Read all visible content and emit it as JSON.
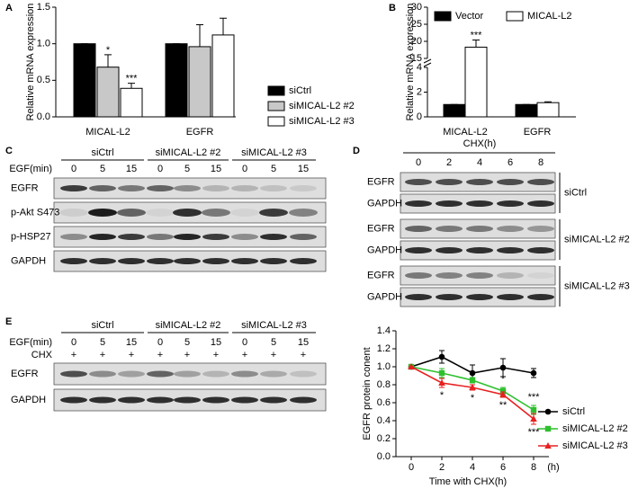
{
  "chart_data": [
    {
      "type": "bar",
      "panel": "A",
      "ylabel": "Relative mRNA expression",
      "categories": [
        "MICAL-L2",
        "EGFR"
      ],
      "series": [
        {
          "name": "siCtrl",
          "color": "#000000",
          "values": [
            1,
            1
          ],
          "errors": [
            0,
            0
          ]
        },
        {
          "name": "siMICAL-L2 #2",
          "color": "#c8c8c8",
          "values": [
            0.68,
            0.96
          ],
          "errors": [
            0.17,
            0.3
          ]
        },
        {
          "name": "siMICAL-L2 #3",
          "color": "#ffffff",
          "values": [
            0.39,
            1.12
          ],
          "errors": [
            0.07,
            0.23
          ]
        }
      ],
      "annotations": [
        {
          "text": "*"
        },
        {
          "text": "***"
        }
      ],
      "ylim": [
        0,
        1.5
      ],
      "yticks": [
        {
          "value": 0,
          "label": "0.0"
        },
        0.5,
        {
          "value": 1,
          "label": "1.0"
        },
        1.5
      ],
      "legend": "right"
    },
    {
      "type": "bar",
      "panel": "B",
      "ylabel": "Relative mRNA expression",
      "categories": [
        "MICAL-L2",
        "EGFR"
      ],
      "series": [
        {
          "name": "Vector",
          "color": "#000000",
          "values": [
            1,
            1
          ],
          "errors": [
            0,
            0
          ]
        },
        {
          "name": "MICAL-L2",
          "color": "#ffffff",
          "values": [
            18.3,
            1.15
          ],
          "errors": [
            2.1,
            0.07
          ]
        }
      ],
      "annotations": [
        {
          "text": "***"
        }
      ],
      "ylim": [
        0,
        30
      ],
      "yticks": [
        0,
        2,
        4,
        15,
        20,
        25,
        30
      ],
      "axis_break": [
        4,
        15
      ],
      "legend": "top"
    },
    {
      "type": "line",
      "ylabel": "EGFR protein conent",
      "xlabel": "Time with CHX(h)",
      "xunit": "(h)",
      "x": [
        0,
        2,
        4,
        6,
        8
      ],
      "series": [
        {
          "name": "siCtrl",
          "color": "#000000",
          "marker": "circle",
          "values": [
            1,
            1.11,
            0.93,
            0.99,
            0.93
          ],
          "errors": [
            0,
            0.07,
            0.09,
            0.1,
            0.05
          ]
        },
        {
          "name": "siMICAL-L2 #2",
          "color": "#2ec02e",
          "marker": "square",
          "values": [
            1,
            0.93,
            0.85,
            0.73,
            0.52
          ],
          "errors": [
            0,
            0.05,
            0.03,
            0.04,
            0.05
          ]
        },
        {
          "name": "siMICAL-L2 #3",
          "color": "#e82020",
          "marker": "triangle",
          "values": [
            1,
            0.82,
            0.77,
            0.69,
            0.42
          ],
          "errors": [
            0,
            0.05,
            0.03,
            0.03,
            0.06
          ]
        }
      ],
      "annotations": [
        {
          "text": "*"
        },
        {
          "text": "*"
        },
        {
          "text": "*"
        },
        {
          "text": "**"
        },
        {
          "text": "***"
        },
        {
          "text": "***"
        }
      ],
      "xlim": [
        -1,
        9
      ],
      "xticks": [
        0,
        2,
        4,
        6,
        8
      ],
      "ylim": [
        0,
        1.4
      ],
      "yticks": [
        {
          "value": 0,
          "label": "0.0"
        },
        0.2,
        0.4,
        0.6,
        0.8,
        {
          "value": 1,
          "label": "1.0"
        },
        1.2,
        1.4
      ],
      "legend": "lower right"
    }
  ],
  "blots": {
    "C": {
      "panel": "C",
      "groups": [
        "siCtrl",
        "siMICAL-L2 #2",
        "siMICAL-L2 #3"
      ],
      "row_header": "EGF(min)",
      "lanes": [
        "0",
        "5",
        "15",
        "0",
        "5",
        "15",
        "0",
        "5",
        "15"
      ],
      "rows": [
        "EGFR",
        "p-Akt S473",
        "p-HSP27",
        "GAPDH"
      ]
    },
    "D": {
      "panel": "D",
      "header": "CHX(h)",
      "lanes": [
        "0",
        "2",
        "4",
        "6",
        "8"
      ],
      "rows": [
        "EGFR",
        "GAPDH",
        "EGFR",
        "GAPDH",
        "EGFR",
        "GAPDH"
      ],
      "groups": [
        "siCtrl",
        "siMICAL-L2 #2",
        "siMICAL-L2 #3"
      ]
    },
    "E": {
      "panel": "E",
      "groups": [
        "siCtrl",
        "siMICAL-L2 #2",
        "siMICAL-L2 #3"
      ],
      "row_headers": [
        "EGF(min)",
        "CHX"
      ],
      "lanes": [
        "0",
        "5",
        "15",
        "0",
        "5",
        "15",
        "0",
        "5",
        "15"
      ],
      "treatment": [
        "+",
        "+",
        "+",
        "+",
        "+",
        "+",
        "+",
        "+",
        "+"
      ],
      "rows": [
        "EGFR",
        "GAPDH"
      ]
    }
  }
}
